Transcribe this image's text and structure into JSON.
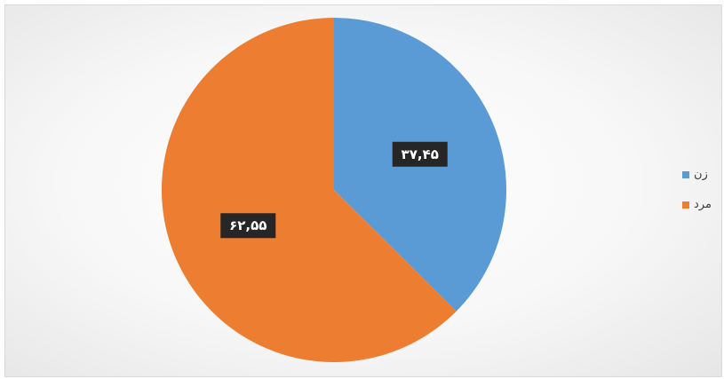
{
  "chart_data": {
    "type": "pie",
    "title": "",
    "categories": [
      "زن",
      "مرد"
    ],
    "values": [
      37.45,
      62.55
    ],
    "data_labels": [
      "۳۷,۴۵",
      "۶۲,۵۵"
    ],
    "colors": [
      "#5b9bd5",
      "#ed7d31"
    ],
    "legend_position": "right"
  }
}
